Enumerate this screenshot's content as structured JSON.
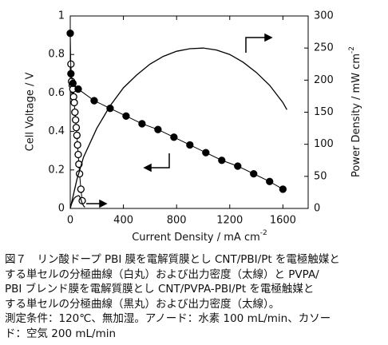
{
  "chart_data": {
    "type": "line",
    "x_label": "Current Density / mA cm",
    "x_label_sup": "-2",
    "y_label": "Cell Voltage / V",
    "y2_label": "Power Density / mW cm",
    "y2_label_sup": "-2",
    "xlim": [
      0,
      1790
    ],
    "xticks": [
      0,
      400,
      800,
      1200,
      1600
    ],
    "ylim": [
      0,
      1
    ],
    "yticks": [
      0,
      0.2,
      0.4,
      0.6,
      0.8,
      1
    ],
    "y2lim": [
      0,
      300
    ],
    "y2ticks": [
      0,
      50,
      100,
      150,
      200,
      250,
      300
    ],
    "series": [
      {
        "color": "#000000",
        "marker": "open",
        "line_width": 1,
        "x": [
          5,
          10,
          15,
          20,
          25,
          30,
          35,
          40,
          45,
          50,
          55,
          60,
          65,
          70,
          80,
          90
        ],
        "values": [
          0.75,
          0.66,
          0.64,
          0.62,
          0.58,
          0.55,
          0.5,
          0.46,
          0.42,
          0.38,
          0.33,
          0.28,
          0.23,
          0.18,
          0.1,
          0.04
        ]
      },
      {
        "color": "#000000",
        "marker": "none",
        "line_width": 1.2,
        "axis": "y2",
        "x": [
          0,
          10,
          20,
          30,
          40,
          50,
          60,
          70,
          80,
          90,
          100,
          110
        ],
        "values": [
          0,
          7,
          12,
          16,
          18,
          19,
          20,
          19,
          14,
          8,
          4,
          2
        ]
      },
      {
        "color": "#000000",
        "marker": "filled",
        "line_width": 1,
        "x": [
          0,
          5,
          20,
          60,
          180,
          300,
          420,
          540,
          660,
          780,
          900,
          1020,
          1140,
          1260,
          1380,
          1500,
          1600
        ],
        "values": [
          0.91,
          0.7,
          0.65,
          0.62,
          0.56,
          0.52,
          0.48,
          0.44,
          0.41,
          0.37,
          0.33,
          0.29,
          0.25,
          0.22,
          0.18,
          0.14,
          0.1
        ]
      },
      {
        "color": "#000000",
        "marker": "none",
        "line_width": 1.3,
        "axis": "y2",
        "x": [
          0,
          50,
          100,
          200,
          300,
          400,
          500,
          600,
          700,
          800,
          900,
          1000,
          1100,
          1200,
          1300,
          1400,
          1500,
          1600,
          1630
        ],
        "values": [
          0,
          45,
          80,
          125,
          160,
          188,
          208,
          225,
          237,
          245,
          249,
          250,
          247,
          240,
          228,
          212,
          192,
          165,
          154
        ]
      }
    ]
  },
  "caption": [
    "図７　リン酸ドープ PBI 膜を電解質膜とし CNT/PBI/Pt を電極触媒と",
    "する単セルの分極曲線（白丸）および出力密度（太線）と PVPA/",
    "PBI ブレンド膜を電解質膜とし CNT/PVPA-PBI/Pt を電極触媒と",
    "する単セルの分極曲線（黒丸）および出力密度（太線）。",
    "測定条件：120℃、無加湿。アノード：水素 100 mL/min、カソー",
    "ド：空気 200 mL/min"
  ]
}
